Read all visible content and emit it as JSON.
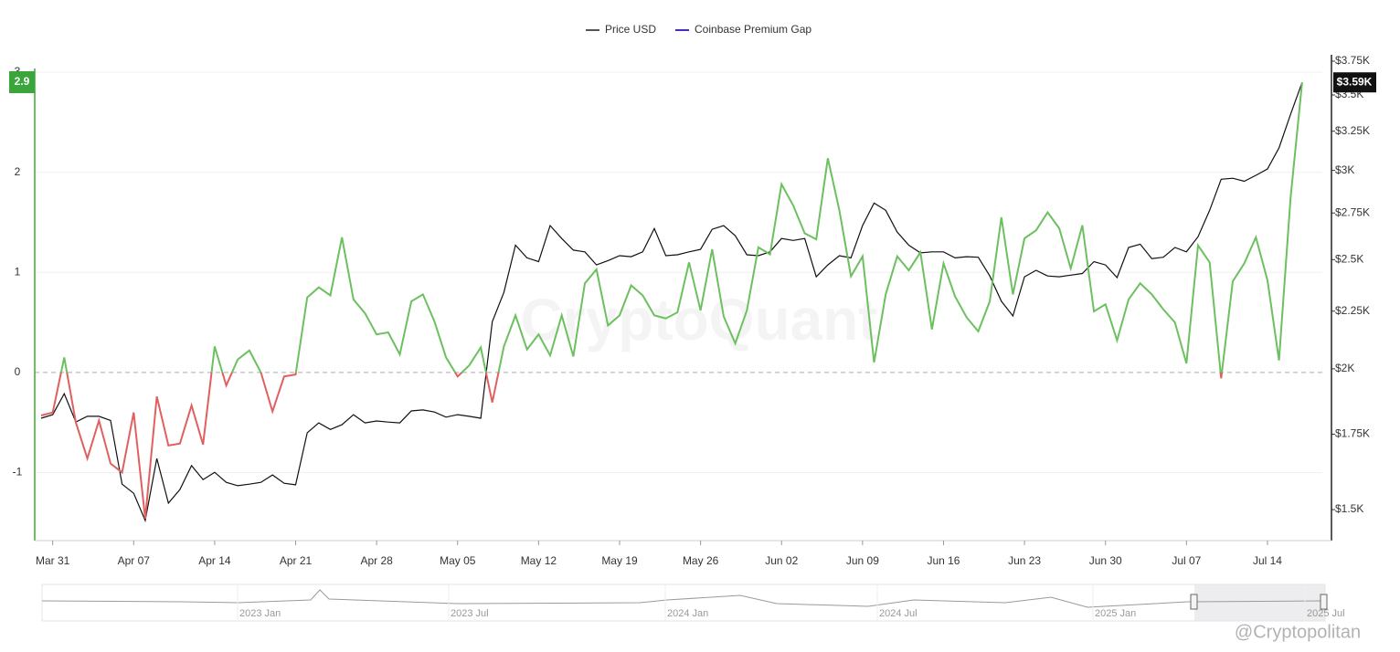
{
  "chart_data": {
    "type": "line",
    "categories": [
      null,
      "Mar 31",
      null,
      null,
      null,
      null,
      null,
      null,
      "Apr 07",
      null,
      null,
      null,
      null,
      null,
      null,
      "Apr 14",
      null,
      null,
      null,
      null,
      null,
      null,
      "Apr 21",
      null,
      null,
      null,
      null,
      null,
      null,
      "Apr 28",
      null,
      null,
      null,
      null,
      null,
      null,
      "May 05",
      null,
      null,
      null,
      null,
      null,
      null,
      "May 12",
      null,
      null,
      null,
      null,
      null,
      null,
      "May 19",
      null,
      null,
      null,
      null,
      null,
      null,
      "May 26",
      null,
      null,
      null,
      null,
      null,
      null,
      "Jun 02",
      null,
      null,
      null,
      null,
      null,
      null,
      "Jun 09",
      null,
      null,
      null,
      null,
      null,
      null,
      "Jun 16",
      null,
      null,
      null,
      null,
      null,
      null,
      "Jun 23",
      null,
      null,
      null,
      null,
      null,
      null,
      "Jun 30",
      null,
      null,
      null,
      null,
      null,
      null,
      "Jul 07",
      null,
      null,
      null,
      null,
      null,
      null,
      "Jul 14",
      null,
      null,
      null
    ],
    "series": [
      {
        "name": "Price USD",
        "color": "#111111",
        "legend_color": "#555555",
        "axis": "y2",
        "last_label": "$3.59K",
        "values": [
          1808,
          1821,
          1901,
          1794,
          1815,
          1815,
          1800,
          1580,
          1551,
          1467,
          1665,
          1520,
          1563,
          1641,
          1595,
          1619,
          1586,
          1575,
          1580,
          1586,
          1610,
          1583,
          1578,
          1755,
          1791,
          1767,
          1784,
          1821,
          1791,
          1798,
          1794,
          1791,
          1835,
          1839,
          1831,
          1812,
          1821,
          1815,
          1808,
          2202,
          2338,
          2575,
          2509,
          2490,
          2680,
          2610,
          2549,
          2540,
          2473,
          2495,
          2520,
          2515,
          2540,
          2664,
          2520,
          2525,
          2540,
          2553,
          2660,
          2680,
          2625,
          2525,
          2520,
          2540,
          2610,
          2600,
          2610,
          2414,
          2473,
          2520,
          2509,
          2680,
          2806,
          2765,
          2645,
          2575,
          2535,
          2540,
          2540,
          2509,
          2515,
          2512,
          2418,
          2296,
          2228,
          2414,
          2446,
          2418,
          2414,
          2422,
          2430,
          2490,
          2473,
          2410,
          2563,
          2580,
          2505,
          2512,
          2563,
          2540,
          2620,
          2765,
          2946,
          2952,
          2934,
          2970,
          3009,
          3141,
          3365,
          3591
        ]
      },
      {
        "name": "Coinbase Premium Gap",
        "color": "#4b2bbf",
        "positive_color": "#6cc05f",
        "negative_color": "#e06060",
        "values": [
          -0.43,
          -0.4,
          0.15,
          -0.5,
          -0.86,
          -0.48,
          -0.91,
          -1.0,
          -0.4,
          -1.46,
          -0.24,
          -0.73,
          -0.71,
          -0.33,
          -0.72,
          0.26,
          -0.13,
          0.13,
          0.22,
          0.0,
          -0.39,
          -0.04,
          -0.02,
          0.75,
          0.85,
          0.77,
          1.35,
          0.73,
          0.59,
          0.38,
          0.4,
          0.18,
          0.71,
          0.78,
          0.51,
          0.15,
          -0.04,
          0.07,
          0.25,
          -0.3,
          0.26,
          0.57,
          0.23,
          0.38,
          0.17,
          0.57,
          0.16,
          0.89,
          1.03,
          0.47,
          0.57,
          0.87,
          0.77,
          0.57,
          0.54,
          0.6,
          1.1,
          0.62,
          1.23,
          0.56,
          0.29,
          0.62,
          1.25,
          1.18,
          1.88,
          1.67,
          1.39,
          1.33,
          2.14,
          1.62,
          0.96,
          1.16,
          0.1,
          0.78,
          1.16,
          1.02,
          1.2,
          0.43,
          1.09,
          0.76,
          0.55,
          0.41,
          0.71,
          1.55,
          0.78,
          1.34,
          1.42,
          1.6,
          1.44,
          1.04,
          1.47,
          0.61,
          0.68,
          0.32,
          0.73,
          0.89,
          0.78,
          0.63,
          0.5,
          0.09,
          1.27,
          1.1,
          -0.06,
          0.91,
          1.09,
          1.35,
          0.92,
          0.12,
          1.75,
          2.9
        ]
      }
    ],
    "ylim": [
      -1.68,
      3.11
    ],
    "yticks": [
      -1,
      0,
      1,
      2,
      3
    ],
    "y2lim": [
      1408,
      3750
    ],
    "y2_log": true,
    "y2ticks": [
      {
        "value": 1500,
        "label": "$1.5K"
      },
      {
        "value": 1750,
        "label": "$1.75K"
      },
      {
        "value": 2000,
        "label": "$2K"
      },
      {
        "value": 2250,
        "label": "$2.25K"
      },
      {
        "value": 2500,
        "label": "$2.5K"
      },
      {
        "value": 2750,
        "label": "$2.75K"
      },
      {
        "value": 3000,
        "label": "$3K"
      },
      {
        "value": 3250,
        "label": "$3.25K"
      },
      {
        "value": 3500,
        "label": "$3.5K"
      },
      {
        "value": 3750,
        "label": "$3.75K"
      }
    ],
    "grid": true,
    "zero_line": true,
    "legend": "top",
    "navigator_labels": [
      "2023 Jan",
      "2023 Jul",
      "2024 Jan",
      "2024 Jul",
      "2025 Jan",
      "2025 Jul"
    ],
    "watermark": "CryptoQuant",
    "credit": "@Cryptopolitan"
  }
}
